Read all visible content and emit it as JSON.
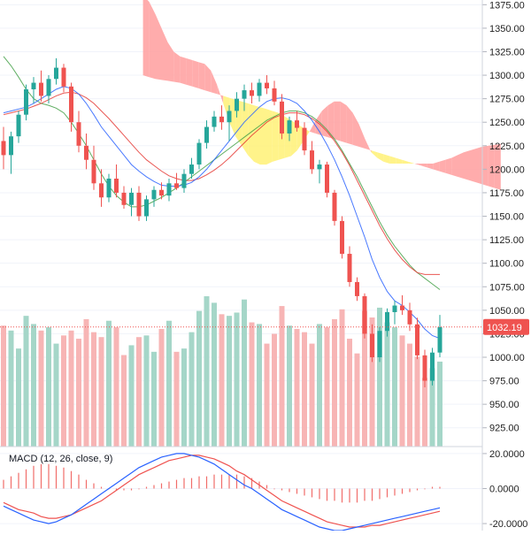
{
  "chart_data": [
    {
      "type": "candlestick",
      "panel": "price",
      "y_ticks": [
        "925.00",
        "950.00",
        "975.00",
        "1000.00",
        "1025.00",
        "1050.00",
        "1075.00",
        "1100.00",
        "1125.00",
        "1150.00",
        "1175.00",
        "1200.00",
        "1225.00",
        "1250.00",
        "1275.00",
        "1300.00",
        "1325.00",
        "1350.00",
        "1375.00"
      ],
      "ylim": [
        905,
        1380
      ],
      "last_price": "1032.19",
      "colors": {
        "up": "#26a69a",
        "down": "#ef5350",
        "volume_up": "#a5d6c8",
        "volume_down": "#f7b5b5",
        "cloud_bull": "#ff9e9e",
        "cloud_bear": "#fff176",
        "ma_fast": "#2962ff",
        "ma_mid": "#e53935",
        "ma_slow": "#43a047",
        "price_line": "#ef5350",
        "macd_line": "#2962ff",
        "signal_line": "#ef5350"
      },
      "candles": [
        {
          "o": 1230,
          "h": 1245,
          "l": 1200,
          "c": 1215
        },
        {
          "o": 1215,
          "h": 1240,
          "l": 1195,
          "c": 1235
        },
        {
          "o": 1235,
          "h": 1262,
          "l": 1228,
          "c": 1258
        },
        {
          "o": 1258,
          "h": 1290,
          "l": 1252,
          "c": 1285
        },
        {
          "o": 1285,
          "h": 1298,
          "l": 1270,
          "c": 1292
        },
        {
          "o": 1292,
          "h": 1305,
          "l": 1272,
          "c": 1278
        },
        {
          "o": 1278,
          "h": 1300,
          "l": 1270,
          "c": 1296
        },
        {
          "o": 1296,
          "h": 1318,
          "l": 1290,
          "c": 1308
        },
        {
          "o": 1308,
          "h": 1312,
          "l": 1282,
          "c": 1288
        },
        {
          "o": 1288,
          "h": 1292,
          "l": 1240,
          "c": 1250
        },
        {
          "o": 1250,
          "h": 1262,
          "l": 1218,
          "c": 1225
        },
        {
          "o": 1225,
          "h": 1238,
          "l": 1200,
          "c": 1210
        },
        {
          "o": 1210,
          "h": 1225,
          "l": 1178,
          "c": 1185
        },
        {
          "o": 1185,
          "h": 1200,
          "l": 1160,
          "c": 1170
        },
        {
          "o": 1170,
          "h": 1195,
          "l": 1165,
          "c": 1190
        },
        {
          "o": 1190,
          "h": 1205,
          "l": 1170,
          "c": 1175
        },
        {
          "o": 1175,
          "h": 1182,
          "l": 1158,
          "c": 1162
        },
        {
          "o": 1162,
          "h": 1180,
          "l": 1150,
          "c": 1175
        },
        {
          "o": 1175,
          "h": 1182,
          "l": 1145,
          "c": 1150
        },
        {
          "o": 1150,
          "h": 1172,
          "l": 1145,
          "c": 1168
        },
        {
          "o": 1168,
          "h": 1182,
          "l": 1160,
          "c": 1178
        },
        {
          "o": 1178,
          "h": 1186,
          "l": 1168,
          "c": 1172
        },
        {
          "o": 1172,
          "h": 1190,
          "l": 1166,
          "c": 1185
        },
        {
          "o": 1185,
          "h": 1196,
          "l": 1178,
          "c": 1180
        },
        {
          "o": 1180,
          "h": 1200,
          "l": 1175,
          "c": 1195
        },
        {
          "o": 1195,
          "h": 1212,
          "l": 1190,
          "c": 1205
        },
        {
          "o": 1205,
          "h": 1232,
          "l": 1200,
          "c": 1228
        },
        {
          "o": 1228,
          "h": 1252,
          "l": 1222,
          "c": 1245
        },
        {
          "o": 1245,
          "h": 1262,
          "l": 1240,
          "c": 1256
        },
        {
          "o": 1256,
          "h": 1268,
          "l": 1242,
          "c": 1250
        },
        {
          "o": 1250,
          "h": 1268,
          "l": 1230,
          "c": 1262
        },
        {
          "o": 1262,
          "h": 1282,
          "l": 1255,
          "c": 1275
        },
        {
          "o": 1275,
          "h": 1290,
          "l": 1262,
          "c": 1284
        },
        {
          "o": 1284,
          "h": 1292,
          "l": 1270,
          "c": 1278
        },
        {
          "o": 1278,
          "h": 1296,
          "l": 1272,
          "c": 1292
        },
        {
          "o": 1292,
          "h": 1300,
          "l": 1280,
          "c": 1286
        },
        {
          "o": 1286,
          "h": 1294,
          "l": 1268,
          "c": 1272
        },
        {
          "o": 1272,
          "h": 1280,
          "l": 1232,
          "c": 1238
        },
        {
          "o": 1238,
          "h": 1256,
          "l": 1230,
          "c": 1252
        },
        {
          "o": 1252,
          "h": 1262,
          "l": 1240,
          "c": 1244
        },
        {
          "o": 1244,
          "h": 1250,
          "l": 1215,
          "c": 1220
        },
        {
          "o": 1220,
          "h": 1230,
          "l": 1195,
          "c": 1200
        },
        {
          "o": 1200,
          "h": 1210,
          "l": 1185,
          "c": 1205
        },
        {
          "o": 1205,
          "h": 1208,
          "l": 1170,
          "c": 1175
        },
        {
          "o": 1175,
          "h": 1178,
          "l": 1140,
          "c": 1145
        },
        {
          "o": 1145,
          "h": 1150,
          "l": 1105,
          "c": 1110
        },
        {
          "o": 1110,
          "h": 1118,
          "l": 1075,
          "c": 1080
        },
        {
          "o": 1080,
          "h": 1085,
          "l": 1060,
          "c": 1065
        },
        {
          "o": 1065,
          "h": 1068,
          "l": 1020,
          "c": 1025
        },
        {
          "o": 1025,
          "h": 1035,
          "l": 995,
          "c": 1000
        },
        {
          "o": 1000,
          "h": 1032,
          "l": 995,
          "c": 1028
        },
        {
          "o": 1028,
          "h": 1052,
          "l": 1022,
          "c": 1048
        },
        {
          "o": 1048,
          "h": 1060,
          "l": 1035,
          "c": 1055
        },
        {
          "o": 1055,
          "h": 1066,
          "l": 1045,
          "c": 1050
        },
        {
          "o": 1050,
          "h": 1058,
          "l": 1028,
          "c": 1035
        },
        {
          "o": 1035,
          "h": 1042,
          "l": 998,
          "c": 1002
        },
        {
          "o": 1002,
          "h": 1008,
          "l": 968,
          "c": 975
        },
        {
          "o": 975,
          "h": 1010,
          "l": 970,
          "c": 1005
        },
        {
          "o": 1005,
          "h": 1045,
          "l": 1000,
          "c": 1032
        }
      ],
      "volume": [
        74,
        71,
        60,
        80,
        75,
        71,
        73,
        63,
        68,
        71,
        66,
        78,
        70,
        67,
        77,
        73,
        56,
        62,
        67,
        68,
        58,
        72,
        77,
        58,
        60,
        70,
        83,
        92,
        88,
        81,
        80,
        82,
        90,
        76,
        75,
        63,
        69,
        86,
        74,
        72,
        70,
        63,
        75,
        73,
        78,
        84,
        66,
        57,
        83,
        79,
        85,
        76,
        73,
        68,
        63,
        55,
        42,
        48,
        52
      ],
      "ma_fast": [
        1260,
        1262,
        1264,
        1266,
        1270,
        1275,
        1280,
        1285,
        1288,
        1286,
        1280,
        1270,
        1258,
        1245,
        1235,
        1225,
        1215,
        1205,
        1198,
        1192,
        1187,
        1183,
        1182,
        1182,
        1183,
        1186,
        1192,
        1200,
        1210,
        1220,
        1230,
        1240,
        1250,
        1258,
        1266,
        1272,
        1275,
        1276,
        1274,
        1270,
        1262,
        1252,
        1240,
        1226,
        1210,
        1192,
        1172,
        1150,
        1128,
        1104,
        1085,
        1070,
        1060,
        1055,
        1048,
        1040,
        1030,
        1023,
        1020
      ],
      "ma_mid": [
        1258,
        1260,
        1262,
        1264,
        1267,
        1270,
        1274,
        1278,
        1281,
        1282,
        1280,
        1276,
        1270,
        1262,
        1254,
        1245,
        1236,
        1227,
        1218,
        1210,
        1204,
        1198,
        1193,
        1190,
        1188,
        1188,
        1190,
        1194,
        1199,
        1205,
        1212,
        1220,
        1228,
        1236,
        1243,
        1250,
        1255,
        1258,
        1260,
        1260,
        1258,
        1254,
        1248,
        1240,
        1230,
        1218,
        1204,
        1188,
        1172,
        1156,
        1140,
        1126,
        1114,
        1104,
        1096,
        1090,
        1088,
        1088,
        1088
      ],
      "ma_slow": [
        1320,
        1310,
        1298,
        1285,
        1275,
        1270,
        1268,
        1265,
        1260,
        1250,
        1238,
        1225,
        1210,
        1195,
        1182,
        1172,
        1165,
        1160,
        1160,
        1162,
        1166,
        1170,
        1175,
        1180,
        1186,
        1192,
        1198,
        1204,
        1210,
        1216,
        1222,
        1228,
        1234,
        1240,
        1246,
        1252,
        1256,
        1260,
        1262,
        1262,
        1260,
        1256,
        1250,
        1242,
        1232,
        1220,
        1206,
        1192,
        1176,
        1160,
        1144,
        1130,
        1118,
        1108,
        1098,
        1090,
        1084,
        1078,
        1072
      ],
      "cloud_a": [
        1385,
        1378,
        1365,
        1350,
        1335,
        1325,
        1320,
        1318,
        1316,
        1314,
        1312,
        1305,
        1290,
        1270,
        1250,
        1235,
        1225,
        1215,
        1208,
        1205,
        1205,
        1208,
        1210,
        1212,
        1214,
        1220,
        1230,
        1240,
        1252,
        1262,
        1268,
        1272,
        1272,
        1268,
        1260,
        1248,
        1232,
        1218,
        1212,
        1208,
        1206,
        1206,
        1206,
        1206,
        1206,
        1206,
        1206,
        1206,
        1208,
        1210,
        1212,
        1215,
        1218,
        1220,
        1222,
        1224,
        1225,
        1226,
        1227
      ],
      "cloud_b": [
        1300,
        1298,
        1296,
        1295,
        1294,
        1293,
        1292,
        1290,
        1288,
        1286,
        1284,
        1282,
        1280,
        1278,
        1276,
        1274,
        1272,
        1270,
        1268,
        1266,
        1264,
        1262,
        1260,
        1256,
        1252,
        1248,
        1244,
        1240,
        1238,
        1236,
        1234,
        1232,
        1230,
        1228,
        1226,
        1224,
        1222,
        1220,
        1218,
        1216,
        1214,
        1212,
        1210,
        1208,
        1206,
        1204,
        1202,
        1200,
        1198,
        1196,
        1194,
        1192,
        1190,
        1188,
        1186,
        1184,
        1182,
        1180,
        1178
      ]
    },
    {
      "type": "bar",
      "panel": "indicator",
      "title": "MACD (12, 26, close, 9)",
      "y_ticks": [
        "20.0000",
        "0.0000",
        "-20.0000"
      ],
      "ylim": [
        -24,
        24
      ],
      "histogram": [
        5,
        7,
        9,
        11,
        13,
        14,
        14,
        13,
        12,
        10,
        8,
        5,
        3,
        1,
        0,
        -1,
        -1,
        -1,
        0,
        1,
        2,
        3,
        4,
        5,
        6,
        6,
        7,
        7,
        8,
        8,
        8,
        8,
        7,
        6,
        4,
        2,
        0,
        -1,
        -2,
        -3,
        -4,
        -5,
        -6,
        -7,
        -7,
        -8,
        -8,
        -8,
        -7,
        -7,
        -6,
        -5,
        -4,
        -3,
        -2,
        -1,
        0,
        1,
        1
      ],
      "macd": [
        -10,
        -12,
        -14,
        -16,
        -18,
        -19,
        -20,
        -19,
        -17,
        -15,
        -12,
        -9,
        -6,
        -3,
        0,
        3,
        6,
        9,
        12,
        14,
        16,
        18,
        19,
        20,
        20,
        19,
        18,
        16,
        14,
        11,
        8,
        5,
        2,
        0,
        -3,
        -6,
        -9,
        -12,
        -14,
        -16,
        -18,
        -20,
        -22,
        -23,
        -24,
        -24,
        -23,
        -22,
        -21,
        -20,
        -19,
        -18,
        -17,
        -16,
        -15,
        -14,
        -13,
        -12,
        -11
      ],
      "signal": [
        -8,
        -10,
        -12,
        -13,
        -14,
        -16,
        -17,
        -17,
        -16,
        -15,
        -13,
        -11,
        -9,
        -7,
        -4,
        -1,
        2,
        5,
        8,
        10,
        12,
        14,
        16,
        17,
        18,
        19,
        19,
        18,
        17,
        15,
        13,
        10,
        8,
        5,
        2,
        -1,
        -4,
        -7,
        -9,
        -11,
        -13,
        -15,
        -17,
        -19,
        -20,
        -21,
        -22,
        -22,
        -22,
        -21,
        -21,
        -20,
        -19,
        -18,
        -17,
        -16,
        -15,
        -14,
        -13
      ]
    }
  ]
}
